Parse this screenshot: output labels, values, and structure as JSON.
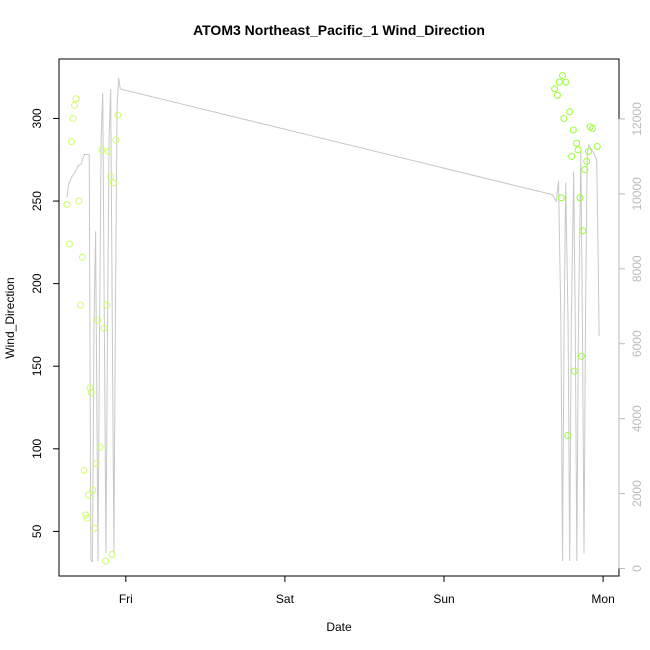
{
  "chart_data": {
    "type": "scatter",
    "title": "ATOM3 Northeast_Pacific_1 Wind_Direction",
    "xlabel": "Date",
    "ylabel": "Wind_Direction",
    "x_ticks": [
      {
        "value": 1.0,
        "label": "Fri"
      },
      {
        "value": 2.0,
        "label": "Sat"
      },
      {
        "value": 3.0,
        "label": "Sun"
      },
      {
        "value": 4.0,
        "label": "Mon"
      }
    ],
    "xlim": [
      0.58,
      4.1
    ],
    "ylim": [
      23,
      336
    ],
    "y_ticks": [
      50,
      100,
      150,
      200,
      250,
      300
    ],
    "y2lim": [
      -200,
      13600
    ],
    "y2_ticks": [
      0,
      2000,
      4000,
      6000,
      8000,
      10000,
      12000
    ],
    "colors": {
      "points_early": "#ccff66",
      "points_late": "#99ff33",
      "line": "#c8c8c8",
      "axis": "#000000",
      "right_axis": "#bbbbbb"
    },
    "series": [
      {
        "kind": "points",
        "points": [
          [
            0.63,
            248
          ],
          [
            0.645,
            224
          ],
          [
            0.658,
            286
          ],
          [
            0.668,
            300
          ],
          [
            0.678,
            308
          ],
          [
            0.688,
            312
          ],
          [
            0.705,
            250
          ],
          [
            0.715,
            187
          ],
          [
            0.727,
            216
          ],
          [
            0.738,
            87
          ],
          [
            0.748,
            60
          ],
          [
            0.757,
            58
          ],
          [
            0.765,
            72
          ],
          [
            0.775,
            137
          ],
          [
            0.783,
            134
          ],
          [
            0.792,
            75
          ],
          [
            0.803,
            52
          ],
          [
            0.815,
            91
          ],
          [
            0.823,
            178
          ],
          [
            0.837,
            101
          ],
          [
            0.85,
            281
          ],
          [
            0.863,
            173
          ],
          [
            0.873,
            32
          ],
          [
            0.88,
            187
          ],
          [
            0.893,
            280
          ],
          [
            0.905,
            265
          ],
          [
            0.913,
            36
          ],
          [
            0.921,
            261
          ],
          [
            0.938,
            287
          ],
          [
            0.95,
            302
          ]
        ]
      },
      {
        "kind": "points",
        "points": [
          [
            3.695,
            318
          ],
          [
            3.713,
            314
          ],
          [
            3.725,
            322
          ],
          [
            3.738,
            252
          ],
          [
            3.745,
            326
          ],
          [
            3.753,
            300
          ],
          [
            3.767,
            322
          ],
          [
            3.778,
            108
          ],
          [
            3.79,
            304
          ],
          [
            3.802,
            277
          ],
          [
            3.813,
            293
          ],
          [
            3.82,
            147
          ],
          [
            3.833,
            285
          ],
          [
            3.843,
            281
          ],
          [
            3.855,
            252
          ],
          [
            3.863,
            156
          ],
          [
            3.872,
            232
          ],
          [
            3.885,
            269
          ],
          [
            3.897,
            274
          ],
          [
            3.908,
            280
          ],
          [
            3.918,
            295
          ],
          [
            3.933,
            294
          ],
          [
            3.963,
            283
          ]
        ]
      },
      {
        "kind": "line",
        "axis": "right",
        "points": [
          [
            0.63,
            9900
          ],
          [
            0.64,
            10250
          ],
          [
            0.65,
            10350
          ],
          [
            0.66,
            10450
          ],
          [
            0.675,
            10550
          ],
          [
            0.69,
            10650
          ],
          [
            0.7,
            10750
          ],
          [
            0.72,
            10800
          ],
          [
            0.73,
            10950
          ],
          [
            0.74,
            11050
          ],
          [
            0.77,
            11050
          ],
          [
            0.78,
            250
          ],
          [
            0.79,
            170
          ],
          [
            0.8,
            6500
          ],
          [
            0.81,
            9000
          ],
          [
            0.825,
            200
          ],
          [
            0.835,
            6500
          ],
          [
            0.845,
            11500
          ],
          [
            0.855,
            12700
          ],
          [
            0.865,
            6500
          ],
          [
            0.875,
            400
          ],
          [
            0.885,
            6500
          ],
          [
            0.895,
            11500
          ],
          [
            0.905,
            12800
          ],
          [
            0.915,
            6500
          ],
          [
            0.925,
            400
          ],
          [
            0.935,
            7000
          ],
          [
            0.945,
            12300
          ],
          [
            0.955,
            13100
          ],
          [
            0.965,
            12800
          ],
          [
            3.68,
            9980
          ],
          [
            3.705,
            9800
          ],
          [
            3.72,
            10350
          ],
          [
            3.735,
            6500
          ],
          [
            3.745,
            200
          ],
          [
            3.755,
            6500
          ],
          [
            3.765,
            10300
          ],
          [
            3.78,
            6500
          ],
          [
            3.79,
            200
          ],
          [
            3.8,
            6500
          ],
          [
            3.815,
            10600
          ],
          [
            3.825,
            6500
          ],
          [
            3.835,
            200
          ],
          [
            3.845,
            6500
          ],
          [
            3.86,
            11100
          ],
          [
            3.87,
            6500
          ],
          [
            3.88,
            400
          ],
          [
            3.89,
            7000
          ],
          [
            3.9,
            11000
          ],
          [
            3.91,
            11300
          ],
          [
            3.94,
            11100
          ],
          [
            3.96,
            10900
          ],
          [
            3.97,
            8000
          ],
          [
            3.975,
            6200
          ]
        ]
      }
    ]
  }
}
